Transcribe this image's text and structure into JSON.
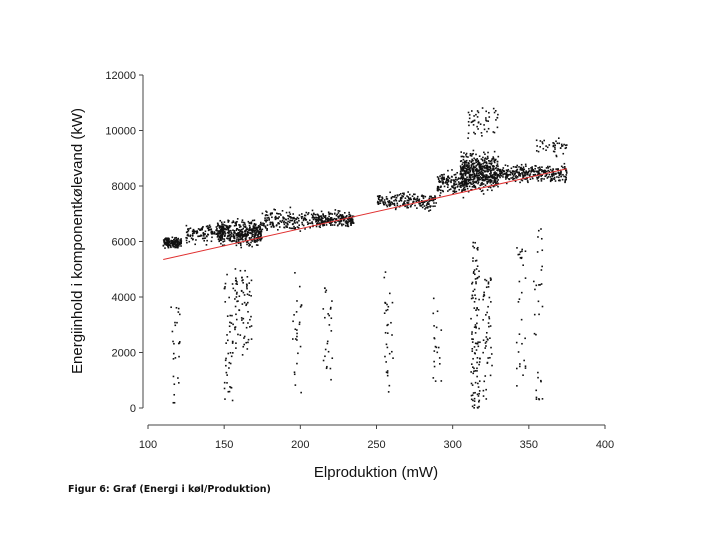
{
  "chart_data": {
    "type": "scatter",
    "title": "",
    "xlabel": "Elproduktion (mW)",
    "ylabel": "Energiinhold i komponentkølevand (kW)",
    "xlim": [
      100,
      400
    ],
    "ylim": [
      0,
      12000
    ],
    "x_ticks": [
      "100",
      "150",
      "200",
      "250",
      "300",
      "350",
      "400"
    ],
    "y_ticks": [
      "0",
      "2000",
      "4000",
      "6000",
      "8000",
      "10000",
      "12000"
    ],
    "grid": false,
    "legend": "none",
    "point_color": "#111111",
    "trendline": {
      "type": "linear",
      "color": "#e03030",
      "x": [
        110,
        375
      ],
      "y": [
        5350,
        8620
      ]
    },
    "clusters": [
      {
        "x": [
          110,
          122
        ],
        "y": [
          5700,
          6200
        ],
        "n": 160
      },
      {
        "x": [
          125,
          150
        ],
        "y": [
          5800,
          6800
        ],
        "n": 120
      },
      {
        "x": [
          145,
          175
        ],
        "y": [
          5700,
          6900
        ],
        "n": 420
      },
      {
        "x": [
          175,
          210
        ],
        "y": [
          6200,
          7300
        ],
        "n": 180
      },
      {
        "x": [
          210,
          235
        ],
        "y": [
          6400,
          7200
        ],
        "n": 220
      },
      {
        "x": [
          250,
          290
        ],
        "y": [
          7000,
          7900
        ],
        "n": 200
      },
      {
        "x": [
          290,
          310
        ],
        "y": [
          7500,
          8700
        ],
        "n": 160
      },
      {
        "x": [
          305,
          330
        ],
        "y": [
          7600,
          9400
        ],
        "n": 520
      },
      {
        "x": [
          330,
          375
        ],
        "y": [
          8000,
          8900
        ],
        "n": 300
      },
      {
        "x": [
          355,
          375
        ],
        "y": [
          9000,
          9900
        ],
        "n": 40
      },
      {
        "x": [
          310,
          330
        ],
        "y": [
          9400,
          11200
        ],
        "n": 50
      }
    ],
    "streaks": [
      {
        "x": 118,
        "y": [
          0,
          4000
        ],
        "n": 25
      },
      {
        "x": 153,
        "y": [
          200,
          5000
        ],
        "n": 45
      },
      {
        "x": 160,
        "y": [
          1500,
          5200
        ],
        "n": 40
      },
      {
        "x": 165,
        "y": [
          2000,
          5000
        ],
        "n": 35
      },
      {
        "x": 198,
        "y": [
          200,
          5000
        ],
        "n": 25
      },
      {
        "x": 218,
        "y": [
          500,
          4500
        ],
        "n": 25
      },
      {
        "x": 258,
        "y": [
          400,
          5000
        ],
        "n": 30
      },
      {
        "x": 290,
        "y": [
          500,
          4000
        ],
        "n": 20
      },
      {
        "x": 315,
        "y": [
          0,
          6000
        ],
        "n": 110
      },
      {
        "x": 323,
        "y": [
          300,
          5000
        ],
        "n": 50
      },
      {
        "x": 345,
        "y": [
          400,
          6000
        ],
        "n": 30
      },
      {
        "x": 356,
        "y": [
          300,
          6500
        ],
        "n": 30
      }
    ]
  },
  "caption": "Figur 6: Graf (Energi i køl/Produktion)"
}
